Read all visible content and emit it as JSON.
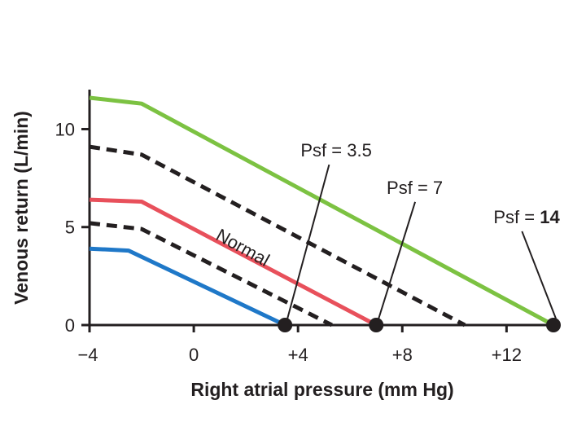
{
  "chart_data": {
    "type": "line",
    "title": "",
    "xlabel": "Right atrial pressure (mm Hg)",
    "ylabel": "Venous return (L/min)",
    "xlim": [
      -4,
      14.5
    ],
    "ylim": [
      0,
      12
    ],
    "x_ticks": [
      -4,
      0,
      4,
      8,
      12
    ],
    "x_tick_labels": [
      "−4",
      "0",
      "+4",
      "+8",
      "+12"
    ],
    "y_ticks": [
      0,
      5,
      10
    ],
    "y_tick_labels": [
      "0",
      "5",
      "10"
    ],
    "grid": false,
    "series": [
      {
        "color": "#7cc242",
        "style": "solid",
        "x": [
          -4,
          -2,
          13.8
        ],
        "y": [
          11.6,
          11.3,
          0
        ]
      },
      {
        "color": "#231f20",
        "style": "dashed",
        "x": [
          -4,
          -2,
          10.4
        ],
        "y": [
          9.1,
          8.7,
          0
        ]
      },
      {
        "color": "#e8505b",
        "style": "solid",
        "x": [
          -4,
          -2,
          7
        ],
        "y": [
          6.4,
          6.3,
          0
        ]
      },
      {
        "color": "#231f20",
        "style": "dashed",
        "x": [
          -4,
          -2,
          5.3
        ],
        "y": [
          5.2,
          4.9,
          0
        ]
      },
      {
        "color": "#1f78c8",
        "style": "solid",
        "x": [
          -4,
          -2.5,
          3.5
        ],
        "y": [
          3.9,
          3.8,
          0
        ]
      }
    ],
    "points": [
      {
        "x": 3.5,
        "y": 0
      },
      {
        "x": 7,
        "y": 0
      },
      {
        "x": 13.8,
        "y": 0
      }
    ],
    "annotations": [
      {
        "prefix": "Psf = ",
        "value": "3.5",
        "bold": false,
        "text_x": 4.1,
        "text_y": 8.6,
        "point_index": 0
      },
      {
        "prefix": "Psf = ",
        "value": "7",
        "bold": false,
        "text_x": 7.4,
        "text_y": 6.7,
        "point_index": 1
      },
      {
        "prefix": "Psf = ",
        "value": "14",
        "bold": true,
        "text_x": 11.5,
        "text_y": 5.2,
        "point_index": 2
      }
    ],
    "curve_label": {
      "text": "Normal",
      "x": 0.8,
      "y": 4.4
    }
  }
}
